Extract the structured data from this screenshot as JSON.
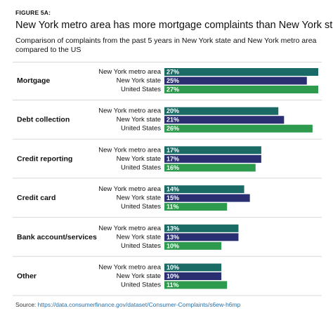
{
  "figure_label": "FIGURE 5A:",
  "source_label": "Source:",
  "source_url": "https://data.consumerfinance.gov/dataset/Consumer-Complaints/s6ew-h6mp",
  "chart_data": {
    "type": "bar",
    "orientation": "horizontal",
    "title": "New York metro area has more mortgage complaints than New York state",
    "subtitle": "Comparison of complaints from the past 5 years in New York state and New York metro area compared to the US",
    "categories": [
      "Mortgage",
      "Debt collection",
      "Credit reporting",
      "Credit card",
      "Bank account/services",
      "Other"
    ],
    "series": [
      {
        "name": "New York metro area",
        "color": "#1a6a66",
        "values": [
          27,
          20,
          17,
          14,
          13,
          10
        ]
      },
      {
        "name": "New York state",
        "color": "#2a2f72",
        "values": [
          25,
          21,
          17,
          15,
          13,
          10
        ]
      },
      {
        "name": "United States",
        "color": "#2e9a4e",
        "values": [
          27,
          26,
          16,
          11,
          10,
          11
        ]
      }
    ],
    "value_suffix": "%",
    "xlim": [
      0,
      27
    ],
    "grid": false,
    "legend": "none"
  }
}
